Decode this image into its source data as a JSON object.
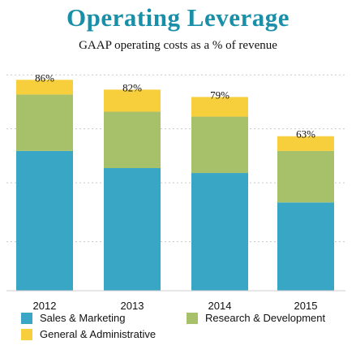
{
  "chart_data": {
    "type": "bar",
    "stacked": true,
    "title": "Operating Leverage",
    "subtitle": "GAAP operating costs as a % of revenue",
    "categories": [
      "2012",
      "2013",
      "2014",
      "2015"
    ],
    "series": [
      {
        "name": "Sales & Marketing",
        "color": "#3aa6c6",
        "values": [
          57,
          50,
          48,
          36
        ]
      },
      {
        "name": "Research & Development",
        "color": "#a7c06a",
        "values": [
          23,
          23,
          23,
          21
        ]
      },
      {
        "name": "General & Administrative",
        "color": "#f7cf3c",
        "values": [
          6,
          9,
          8,
          6
        ]
      }
    ],
    "totals": [
      86,
      82,
      79,
      63
    ],
    "total_labels": [
      "86%",
      "82%",
      "79%",
      "63%"
    ],
    "ylim": [
      0,
      90
    ],
    "grid": true,
    "legend_position": "bottom"
  }
}
